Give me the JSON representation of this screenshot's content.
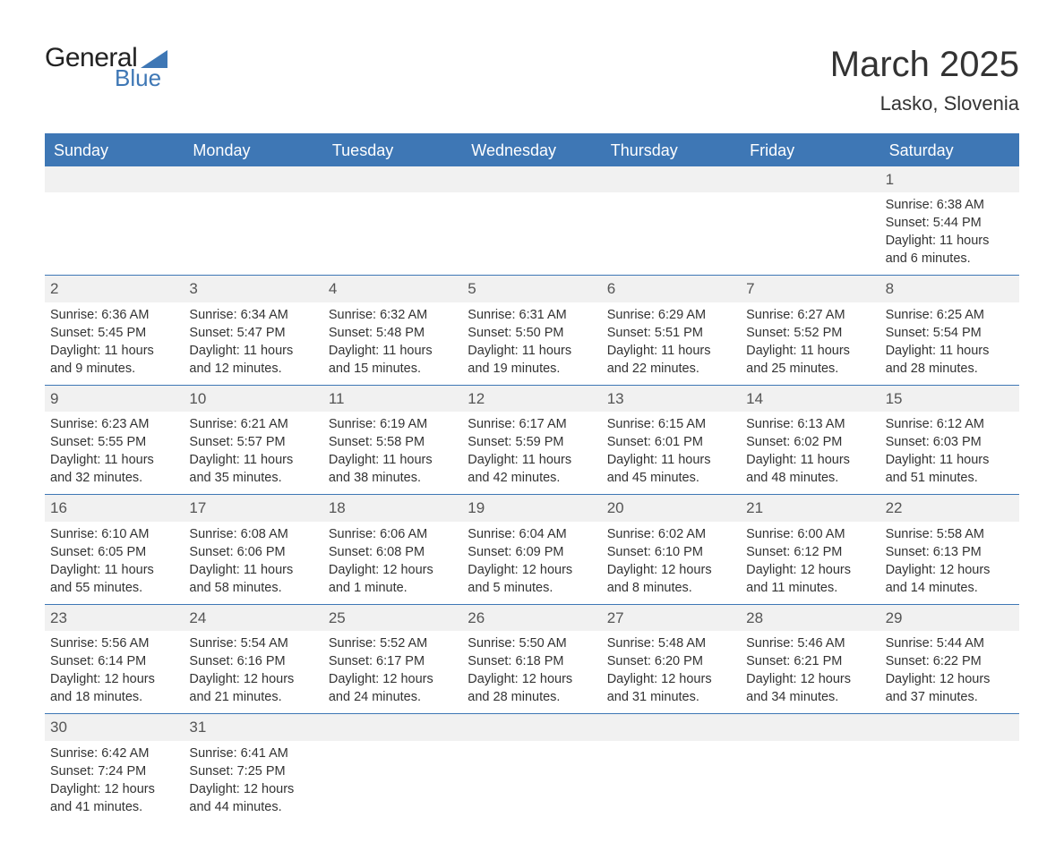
{
  "logo": {
    "line1": "General",
    "line2": "Blue"
  },
  "title": "March 2025",
  "location": "Lasko, Slovenia",
  "colors": {
    "header_bg": "#3e77b5",
    "header_text": "#ffffff",
    "daynum_bg": "#f1f1f1",
    "body_text": "#333333",
    "page_bg": "#ffffff"
  },
  "day_headers": [
    "Sunday",
    "Monday",
    "Tuesday",
    "Wednesday",
    "Thursday",
    "Friday",
    "Saturday"
  ],
  "leading_blanks": 6,
  "days": [
    {
      "n": "1",
      "sunrise": "6:38 AM",
      "sunset": "5:44 PM",
      "daylight": "11 hours and 6 minutes."
    },
    {
      "n": "2",
      "sunrise": "6:36 AM",
      "sunset": "5:45 PM",
      "daylight": "11 hours and 9 minutes."
    },
    {
      "n": "3",
      "sunrise": "6:34 AM",
      "sunset": "5:47 PM",
      "daylight": "11 hours and 12 minutes."
    },
    {
      "n": "4",
      "sunrise": "6:32 AM",
      "sunset": "5:48 PM",
      "daylight": "11 hours and 15 minutes."
    },
    {
      "n": "5",
      "sunrise": "6:31 AM",
      "sunset": "5:50 PM",
      "daylight": "11 hours and 19 minutes."
    },
    {
      "n": "6",
      "sunrise": "6:29 AM",
      "sunset": "5:51 PM",
      "daylight": "11 hours and 22 minutes."
    },
    {
      "n": "7",
      "sunrise": "6:27 AM",
      "sunset": "5:52 PM",
      "daylight": "11 hours and 25 minutes."
    },
    {
      "n": "8",
      "sunrise": "6:25 AM",
      "sunset": "5:54 PM",
      "daylight": "11 hours and 28 minutes."
    },
    {
      "n": "9",
      "sunrise": "6:23 AM",
      "sunset": "5:55 PM",
      "daylight": "11 hours and 32 minutes."
    },
    {
      "n": "10",
      "sunrise": "6:21 AM",
      "sunset": "5:57 PM",
      "daylight": "11 hours and 35 minutes."
    },
    {
      "n": "11",
      "sunrise": "6:19 AM",
      "sunset": "5:58 PM",
      "daylight": "11 hours and 38 minutes."
    },
    {
      "n": "12",
      "sunrise": "6:17 AM",
      "sunset": "5:59 PM",
      "daylight": "11 hours and 42 minutes."
    },
    {
      "n": "13",
      "sunrise": "6:15 AM",
      "sunset": "6:01 PM",
      "daylight": "11 hours and 45 minutes."
    },
    {
      "n": "14",
      "sunrise": "6:13 AM",
      "sunset": "6:02 PM",
      "daylight": "11 hours and 48 minutes."
    },
    {
      "n": "15",
      "sunrise": "6:12 AM",
      "sunset": "6:03 PM",
      "daylight": "11 hours and 51 minutes."
    },
    {
      "n": "16",
      "sunrise": "6:10 AM",
      "sunset": "6:05 PM",
      "daylight": "11 hours and 55 minutes."
    },
    {
      "n": "17",
      "sunrise": "6:08 AM",
      "sunset": "6:06 PM",
      "daylight": "11 hours and 58 minutes."
    },
    {
      "n": "18",
      "sunrise": "6:06 AM",
      "sunset": "6:08 PM",
      "daylight": "12 hours and 1 minute."
    },
    {
      "n": "19",
      "sunrise": "6:04 AM",
      "sunset": "6:09 PM",
      "daylight": "12 hours and 5 minutes."
    },
    {
      "n": "20",
      "sunrise": "6:02 AM",
      "sunset": "6:10 PM",
      "daylight": "12 hours and 8 minutes."
    },
    {
      "n": "21",
      "sunrise": "6:00 AM",
      "sunset": "6:12 PM",
      "daylight": "12 hours and 11 minutes."
    },
    {
      "n": "22",
      "sunrise": "5:58 AM",
      "sunset": "6:13 PM",
      "daylight": "12 hours and 14 minutes."
    },
    {
      "n": "23",
      "sunrise": "5:56 AM",
      "sunset": "6:14 PM",
      "daylight": "12 hours and 18 minutes."
    },
    {
      "n": "24",
      "sunrise": "5:54 AM",
      "sunset": "6:16 PM",
      "daylight": "12 hours and 21 minutes."
    },
    {
      "n": "25",
      "sunrise": "5:52 AM",
      "sunset": "6:17 PM",
      "daylight": "12 hours and 24 minutes."
    },
    {
      "n": "26",
      "sunrise": "5:50 AM",
      "sunset": "6:18 PM",
      "daylight": "12 hours and 28 minutes."
    },
    {
      "n": "27",
      "sunrise": "5:48 AM",
      "sunset": "6:20 PM",
      "daylight": "12 hours and 31 minutes."
    },
    {
      "n": "28",
      "sunrise": "5:46 AM",
      "sunset": "6:21 PM",
      "daylight": "12 hours and 34 minutes."
    },
    {
      "n": "29",
      "sunrise": "5:44 AM",
      "sunset": "6:22 PM",
      "daylight": "12 hours and 37 minutes."
    },
    {
      "n": "30",
      "sunrise": "6:42 AM",
      "sunset": "7:24 PM",
      "daylight": "12 hours and 41 minutes."
    },
    {
      "n": "31",
      "sunrise": "6:41 AM",
      "sunset": "7:25 PM",
      "daylight": "12 hours and 44 minutes."
    }
  ],
  "labels": {
    "sunrise": "Sunrise: ",
    "sunset": "Sunset: ",
    "daylight": "Daylight: "
  }
}
